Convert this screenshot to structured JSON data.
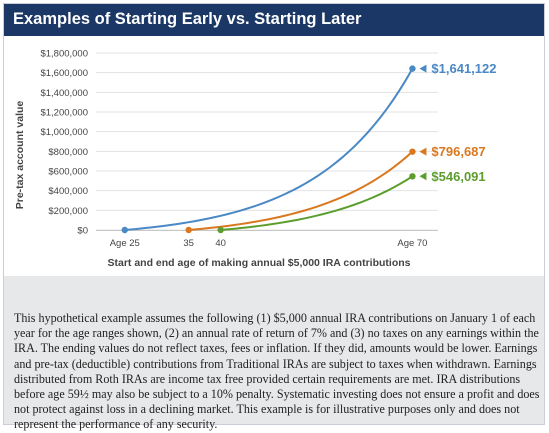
{
  "header": {
    "title": "Examples of Starting Early vs. Starting Later"
  },
  "chart_data": {
    "type": "line",
    "title": "",
    "ylabel": "Pre-tax account value",
    "xlabel": "Start and end age of making annual $5,000 IRA contributions",
    "ylim": [
      0,
      1800000
    ],
    "xlim": [
      20.5,
      74
    ],
    "yticks": [
      0,
      200000,
      400000,
      600000,
      800000,
      1000000,
      1200000,
      1400000,
      1600000,
      1800000
    ],
    "ytick_labels": [
      "$0",
      "$200,000",
      "$400,000",
      "$600,000",
      "$800,000",
      "$1,000,000",
      "$1,200,000",
      "$1,400,000",
      "$1,600,000",
      "$1,800,000"
    ],
    "xtick_labels": [
      {
        "x": 25,
        "label": "Age 25"
      },
      {
        "x": 35,
        "label": "35"
      },
      {
        "x": 40,
        "label": "40"
      },
      {
        "x": 70,
        "label": "Age 70"
      }
    ],
    "grid": true,
    "series": [
      {
        "start": 25,
        "end": 70,
        "annual_contribution": 5000,
        "rate": 0.07,
        "final_value": 1641122,
        "end_label": "$1,641,122",
        "color": "#4a88c6"
      },
      {
        "start": 35,
        "end": 70,
        "annual_contribution": 5000,
        "rate": 0.07,
        "final_value": 796687,
        "end_label": "$796,687",
        "color": "#d9781f"
      },
      {
        "start": 40,
        "end": 70,
        "annual_contribution": 5000,
        "rate": 0.07,
        "final_value": 546091,
        "end_label": "$546,091",
        "color": "#5c9e2e"
      }
    ]
  },
  "disclaimer": "This hypothetical example assumes the following (1) $5,000 annual IRA contributions on January 1 of each year for the age ranges shown, (2) an annual rate of return of 7% and (3) no taxes on any earnings within the IRA. The ending values do not reflect taxes, fees or inflation. If they did, amounts would be lower. Earnings and pre-tax (deductible) contributions from Traditional IRAs are subject to taxes when withdrawn. Earnings distributed from Roth IRAs are income tax free provided certain requirements are met. IRA distributions before age 59½ may also be subject to a 10% penalty. Systematic investing does not ensure a profit and does not protect against loss in a declining market. This example is for illustrative purposes only and does not represent the performance of any security."
}
